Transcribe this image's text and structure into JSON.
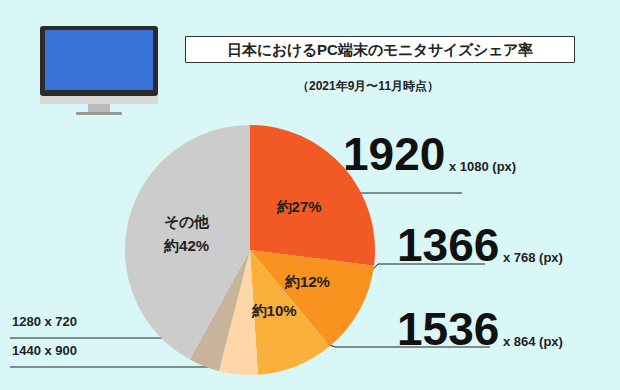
{
  "chart_data": {
    "type": "pie",
    "title": "日本におけるPC端末のモニタサイズシェア率",
    "subtitle": "（2021年9月〜11月時点）",
    "categories": [
      "1920 x 1080 (px)",
      "1366 x 768 (px)",
      "1536 x 864 (px)",
      "1440 x 900",
      "1280 x 720",
      "その他"
    ],
    "values": [
      27,
      12,
      10,
      5,
      4,
      42
    ],
    "value_labels": [
      "約27%",
      "約12%",
      "約10%",
      null,
      null,
      "約42%"
    ],
    "colors": [
      "#f15a24",
      "#f7931e",
      "#fbb03b",
      "#fdd7a8",
      "#c8b49b",
      "#cccccc"
    ],
    "data_labels": true
  }
}
